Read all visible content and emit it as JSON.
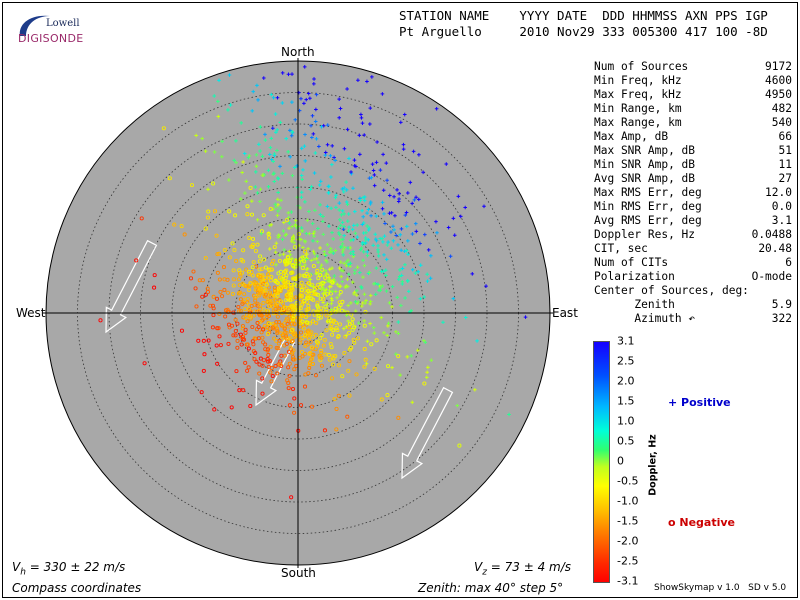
{
  "logo": {
    "line1": "Lowell",
    "line2": "DIGISONDE"
  },
  "header": {
    "labels_line": "STATION NAME    YYYY DATE  DDD HHMMSS AXN PPS IGP",
    "values_line": "Pt Arguello     2010 Nov29 333 005300 417 100 -8D"
  },
  "compass": {
    "north": "North",
    "south": "South",
    "east": "East",
    "west": "West"
  },
  "stats": [
    {
      "label": "Num of Sources",
      "value": "9172"
    },
    {
      "label": "Min Freq, kHz",
      "value": "4600"
    },
    {
      "label": "Max Freq, kHz",
      "value": "4950"
    },
    {
      "label": "Min Range, km",
      "value": "482"
    },
    {
      "label": "Max Range, km",
      "value": "540"
    },
    {
      "label": "Max Amp, dB",
      "value": "66"
    },
    {
      "label": "Max SNR Amp, dB",
      "value": "51"
    },
    {
      "label": "Min SNR Amp, dB",
      "value": "11"
    },
    {
      "label": "Avg SNR Amp, dB",
      "value": "27"
    },
    {
      "label": "Max RMS Err, deg",
      "value": "12.0"
    },
    {
      "label": "Min RMS Err, deg",
      "value": "0.0"
    },
    {
      "label": "Avg RMS Err, deg",
      "value": "3.1"
    },
    {
      "label": "Doppler Res, Hz",
      "value": "0.0488"
    },
    {
      "label": "CIT, sec",
      "value": "20.48"
    },
    {
      "label": "Num of CITs",
      "value": "6"
    },
    {
      "label": "Polarization",
      "value": "O-mode"
    },
    {
      "label": "Center of Sources, deg:",
      "value": ""
    },
    {
      "label": "      Zenith",
      "value": "5.9"
    },
    {
      "label": "      Azimuth ↶",
      "value": "322"
    }
  ],
  "colorbar": {
    "ticks": [
      "3.1",
      "2.5",
      "2.0",
      "1.5",
      "1.0",
      "0.5",
      "0",
      "-0.5",
      "-1.0",
      "-1.5",
      "-2.0",
      "-2.5",
      "-3.1"
    ],
    "label": "Doppler, Hz"
  },
  "legend": {
    "positive": "+ Positive",
    "negative": "o Negative",
    "positive_color": "#0000cc",
    "negative_color": "#cc0000"
  },
  "footer": {
    "vh_sym": "V",
    "vh_sub": "h",
    "vh_text": " = 330 ± 22 m/s",
    "vz_sym": "V",
    "vz_sub": "z",
    "vz_text": " = 73 ± 4 m/s",
    "coords": "Compass coordinates",
    "zenith": "Zenith: max 40°  step 5°",
    "version": "ShowSkymap v 1.0   SD v 5.0"
  },
  "skymap": {
    "zenith_max_deg": 40,
    "zenith_step_deg": 5,
    "source_count": 9172,
    "centroid": {
      "zenith_deg": 5.9,
      "azimuth_deg": 322
    },
    "background_color": "#a8a8a8"
  }
}
